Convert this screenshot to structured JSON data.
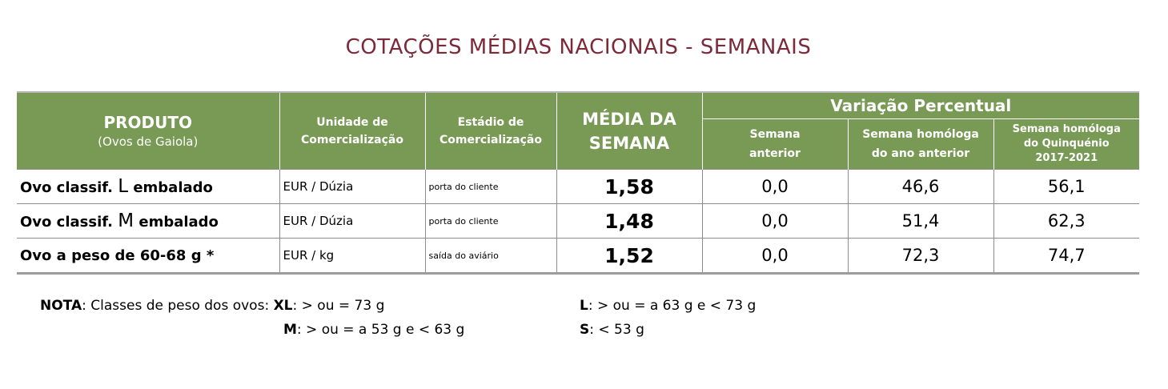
{
  "title": "COTAÇÕES MÉDIAS NACIONAIS - SEMANAIS",
  "headers": {
    "produto": "PRODUTO",
    "produto_sub": "(Ovos de Gaiola)",
    "unidade_line1": "Unidade de",
    "unidade_line2": "Comercialização",
    "estadio_line1": "Estádio de",
    "estadio_line2": "Comercialização",
    "media_line1": "MÉDIA DA",
    "media_line2": "SEMANA",
    "variacao": "Variação Percentual",
    "semana_anterior_line1": "Semana",
    "semana_anterior_line2": "anterior",
    "homologa_line1": "Semana homóloga",
    "homologa_line2": "do ano anterior",
    "quinquenio_line1": "Semana homóloga",
    "quinquenio_line2": "do Quinquénio",
    "quinquenio_line3": "2017-2021"
  },
  "rows": [
    {
      "prod_pre": "Ovo classif.",
      "prod_class": "L",
      "prod_post": "embalado",
      "unidade": "EUR / Dúzia",
      "estadio": "porta do cliente",
      "media": "1,58",
      "semana_anterior": "0,0",
      "homologa": "46,6",
      "quinquenio": "56,1"
    },
    {
      "prod_pre": "Ovo classif.",
      "prod_class": "M",
      "prod_post": "embalado",
      "unidade": "EUR / Dúzia",
      "estadio": "porta do cliente",
      "media": "1,48",
      "semana_anterior": "0,0",
      "homologa": "51,4",
      "quinquenio": "62,3"
    },
    {
      "prod_pre": "Ovo a peso de 60-68 g *",
      "prod_class": "",
      "prod_post": "",
      "unidade": "EUR / kg",
      "estadio": "saída do aviário",
      "media": "1,52",
      "semana_anterior": "0,0",
      "homologa": "72,3",
      "quinquenio": "74,7"
    }
  ],
  "note": {
    "label": "NOTA",
    "intro": ": Classes de peso dos ovos: ",
    "xl_label": "XL",
    "xl_text": ": > ou = 73 g",
    "l_label": "L",
    "l_text": ": > ou = a 63 g e < 73 g",
    "m_label": "M",
    "m_text": ": > ou = a 53 g e < 63 g",
    "s_label": "S",
    "s_text": ": < 53 g"
  }
}
